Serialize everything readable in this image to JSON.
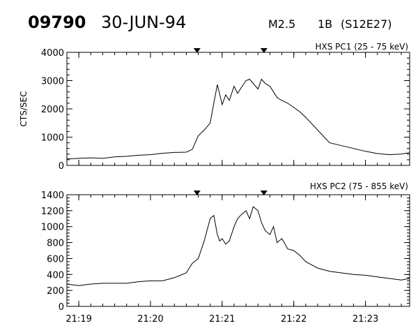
{
  "header": {
    "event_id": "09790",
    "date": "30-JUN-94",
    "goes_class": "M2.5",
    "optical_class": "1B",
    "location": "(S12E27)"
  },
  "chart_data": [
    {
      "type": "line",
      "title": "HXS PC1 (25 - 75 keV)",
      "ylabel": "CTS/SEC",
      "ylim": [
        0,
        4000
      ],
      "yticks": [
        "0",
        "1000",
        "2000",
        "3000",
        "4000"
      ],
      "xlim": [
        "21:18:50",
        "21:23:37"
      ],
      "xticks": [
        "21:19",
        "21:20",
        "21:21",
        "21:22",
        "21:23"
      ],
      "x_unit": "UT time (seconds from 21:18:50)",
      "markers": [
        "21:20:39",
        "21:21:35"
      ],
      "series": [
        {
          "x": [
            0,
            10,
            20,
            30,
            40,
            50,
            60,
            70,
            80,
            90,
            100,
            105,
            108,
            110,
            115,
            120,
            123,
            126,
            130,
            133,
            136,
            140,
            143,
            146,
            150,
            153,
            156,
            160,
            163,
            166,
            170,
            173,
            176,
            180,
            185,
            190,
            195,
            200,
            210,
            220,
            230,
            240,
            250,
            260,
            270,
            280,
            287
          ],
          "y": [
            230,
            250,
            270,
            250,
            300,
            320,
            360,
            380,
            430,
            460,
            470,
            570,
            850,
            1050,
            1250,
            1500,
            2200,
            2860,
            2150,
            2500,
            2300,
            2800,
            2550,
            2750,
            3000,
            3050,
            2900,
            2700,
            3050,
            2900,
            2800,
            2600,
            2400,
            2300,
            2200,
            2050,
            1900,
            1700,
            1250,
            800,
            700,
            600,
            500,
            420,
            380,
            400,
            450
          ]
        }
      ]
    },
    {
      "type": "line",
      "title": "HXS PC2 (75 - 855 keV)",
      "ylabel": "",
      "ylim": [
        0,
        1400
      ],
      "yticks": [
        "0",
        "200",
        "400",
        "600",
        "800",
        "1000",
        "1200",
        "1400"
      ],
      "xlim": [
        "21:18:50",
        "21:23:37"
      ],
      "xticks": [
        "21:19",
        "21:20",
        "21:21",
        "21:22",
        "21:23"
      ],
      "x_unit": "UT time (seconds from 21:18:50)",
      "markers": [
        "21:20:39",
        "21:21:35"
      ],
      "series": [
        {
          "x": [
            0,
            10,
            20,
            30,
            40,
            50,
            60,
            70,
            80,
            90,
            100,
            105,
            110,
            115,
            120,
            123,
            126,
            128,
            130,
            133,
            136,
            140,
            143,
            146,
            150,
            153,
            156,
            160,
            163,
            166,
            170,
            173,
            176,
            180,
            185,
            190,
            195,
            200,
            210,
            220,
            230,
            240,
            250,
            260,
            270,
            280,
            287
          ],
          "y": [
            280,
            260,
            280,
            290,
            290,
            290,
            310,
            320,
            320,
            360,
            420,
            540,
            600,
            820,
            1100,
            1140,
            900,
            820,
            850,
            780,
            820,
            1000,
            1100,
            1150,
            1200,
            1100,
            1250,
            1200,
            1050,
            950,
            900,
            1000,
            800,
            850,
            720,
            700,
            640,
            560,
            480,
            440,
            420,
            400,
            390,
            370,
            350,
            330,
            350
          ]
        }
      ]
    }
  ]
}
